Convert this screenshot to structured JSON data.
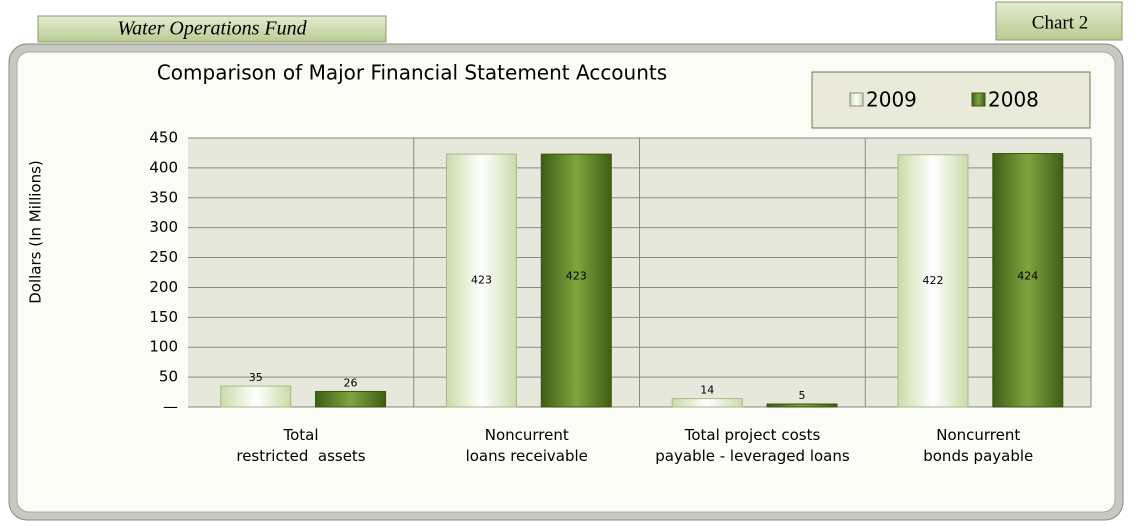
{
  "header": {
    "fund": "Water Operations Fund",
    "chart_label": "Chart 2"
  },
  "chart_data": {
    "type": "bar",
    "title": "Comparison of Major Financial Statement Accounts",
    "y_label": "Dollars (In Millions)",
    "categories": [
      "Total\nrestricted  assets",
      "Noncurrent\nloans receivable",
      "Total project costs\npayable - leveraged loans",
      "Noncurrent\nbonds payable"
    ],
    "series": [
      {
        "name": "2009",
        "color": "#eef6de",
        "values": [
          35,
          423,
          14,
          422
        ]
      },
      {
        "name": "2008",
        "color": "#6b8f2f",
        "values": [
          26,
          423,
          5,
          424
        ]
      }
    ],
    "ylim": [
      0,
      450
    ],
    "yticks": [
      {
        "value": 0,
        "label": "—"
      },
      50,
      100,
      150,
      200,
      250,
      300,
      350,
      400,
      450
    ],
    "grid": true,
    "legend": "top-right"
  }
}
